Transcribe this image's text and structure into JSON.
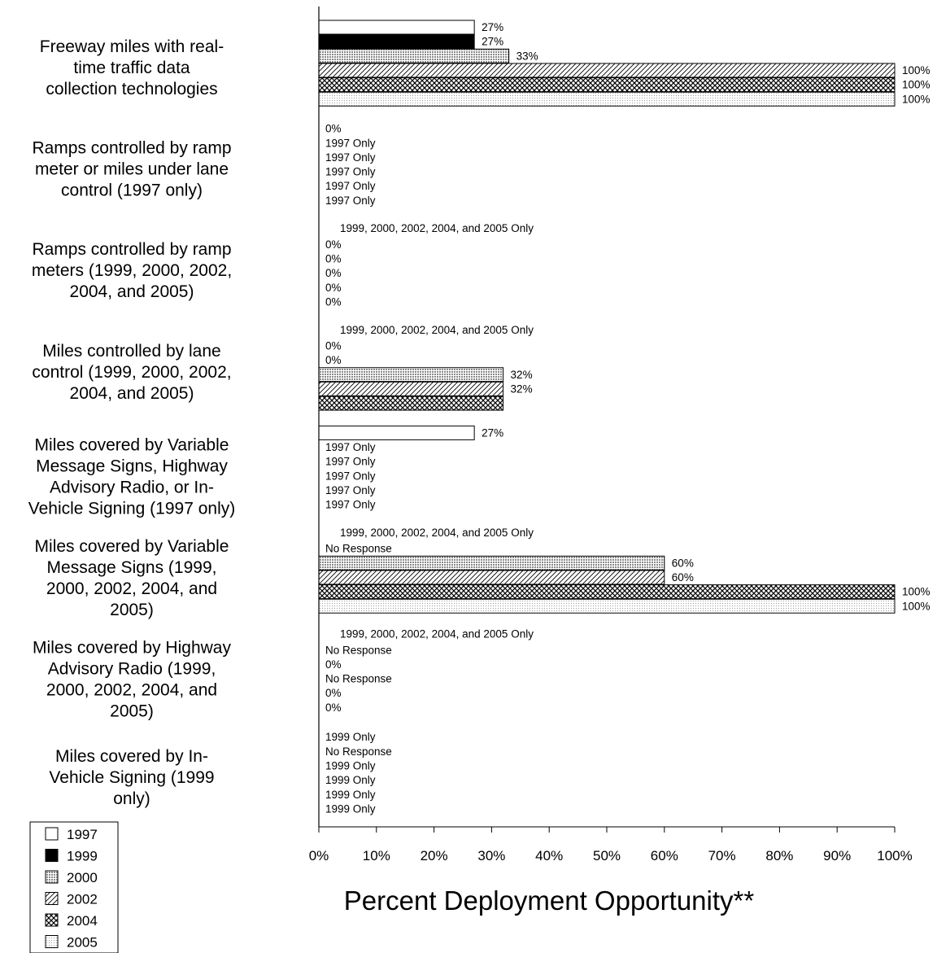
{
  "chart_data": {
    "type": "bar",
    "orientation": "horizontal",
    "xlabel": "Percent Deployment Opportunity**",
    "xlim": [
      0,
      100
    ],
    "x_ticks": [
      "0%",
      "10%",
      "20%",
      "30%",
      "40%",
      "50%",
      "60%",
      "70%",
      "80%",
      "90%",
      "100%"
    ],
    "grid": false,
    "legend_position": "bottom-left",
    "legend": [
      "1997",
      "1999",
      "2000",
      "2002",
      "2004",
      "2005"
    ],
    "categories": [
      "Freeway miles with real-time traffic data collection technologies",
      "Ramps controlled by ramp meter or miles under lane control (1997 only)",
      "Ramps controlled by ramp meters (1999, 2000, 2002, 2004, and 2005)",
      "Miles controlled by lane control (1999, 2000, 2002, 2004, and 2005)",
      "Miles covered by Variable Message Signs, Highway Advisory Radio, or In-Vehicle Signing (1997 only)",
      "Miles covered by Variable Message Signs (1999, 2000, 2002, 2004, and 2005)",
      "Miles covered by Highway Advisory Radio (1999, 2000,  2002, 2004, and 2005)",
      "Miles covered by In-Vehicle Signing (1999 only)"
    ],
    "category_lines": [
      [
        "Freeway miles with real-",
        "time traffic data",
        "collection technologies"
      ],
      [
        "Ramps controlled by ramp",
        "meter or miles under lane",
        "control (1997 only)"
      ],
      [
        "Ramps controlled by ramp",
        "meters (1999, 2000, 2002,",
        "2004, and 2005)"
      ],
      [
        "Miles controlled by lane",
        "control (1999, 2000, 2002,",
        "2004, and 2005)"
      ],
      [
        "Miles covered by Variable",
        "Message Signs, Highway",
        "Advisory Radio, or In-",
        "Vehicle Signing (1997 only)"
      ],
      [
        "Miles covered by Variable",
        "Message Signs (1999,",
        "2000, 2002, 2004, and",
        "2005)"
      ],
      [
        "Miles covered by Highway",
        "Advisory Radio (1999,",
        "2000,  2002, 2004, and",
        "2005)"
      ],
      [
        "Miles covered by In-",
        "Vehicle Signing (1999",
        "only)"
      ]
    ],
    "group_notes": [
      "",
      "",
      "1999, 2000, 2002, 2004, and 2005 Only",
      "1999, 2000, 2002, 2004, and 2005 Only",
      "",
      "1999, 2000, 2002, 2004, and 2005 Only",
      "1999, 2000, 2002, 2004, and 2005 Only",
      ""
    ],
    "series": [
      {
        "name": "1997",
        "values": [
          27,
          0,
          null,
          null,
          27,
          null,
          null,
          null
        ],
        "labels": [
          "27%",
          "0%",
          "0%",
          "0%",
          "27%",
          "No Response",
          "No Response",
          "1999 Only"
        ]
      },
      {
        "name": "1999",
        "values": [
          27,
          null,
          0,
          0,
          null,
          null,
          0,
          null
        ],
        "labels": [
          "27%",
          "1997 Only",
          "0%",
          "0%",
          "1997 Only",
          "",
          "0%",
          "No Response"
        ]
      },
      {
        "name": "2000",
        "values": [
          33,
          null,
          0,
          32,
          null,
          60,
          null,
          null
        ],
        "labels": [
          "33%",
          "1997 Only",
          "0%",
          "32%",
          "1997 Only",
          "60%",
          "No Response",
          "1999 Only"
        ]
      },
      {
        "name": "2002",
        "values": [
          100,
          null,
          0,
          32,
          null,
          60,
          0,
          null
        ],
        "labels": [
          "100%",
          "1997 Only",
          "0%",
          "32%",
          "1997 Only",
          "60%",
          "0%",
          "1999 Only"
        ]
      },
      {
        "name": "2004",
        "values": [
          100,
          null,
          0,
          32,
          null,
          100,
          0,
          null
        ],
        "labels": [
          "100%",
          "1997 Only",
          "0%",
          "",
          "1997 Only",
          "100%",
          "0%",
          "1999 Only"
        ]
      },
      {
        "name": "2005",
        "values": [
          100,
          null,
          null,
          null,
          null,
          100,
          null,
          null
        ],
        "labels": [
          "100%",
          "1997 Only",
          "",
          "",
          "1997 Only",
          "100%",
          "",
          "1999 Only"
        ]
      }
    ],
    "series_patterns": [
      "white",
      "black",
      "dense-dots",
      "diagonal-lines",
      "crosshatch",
      "light-dots"
    ]
  }
}
